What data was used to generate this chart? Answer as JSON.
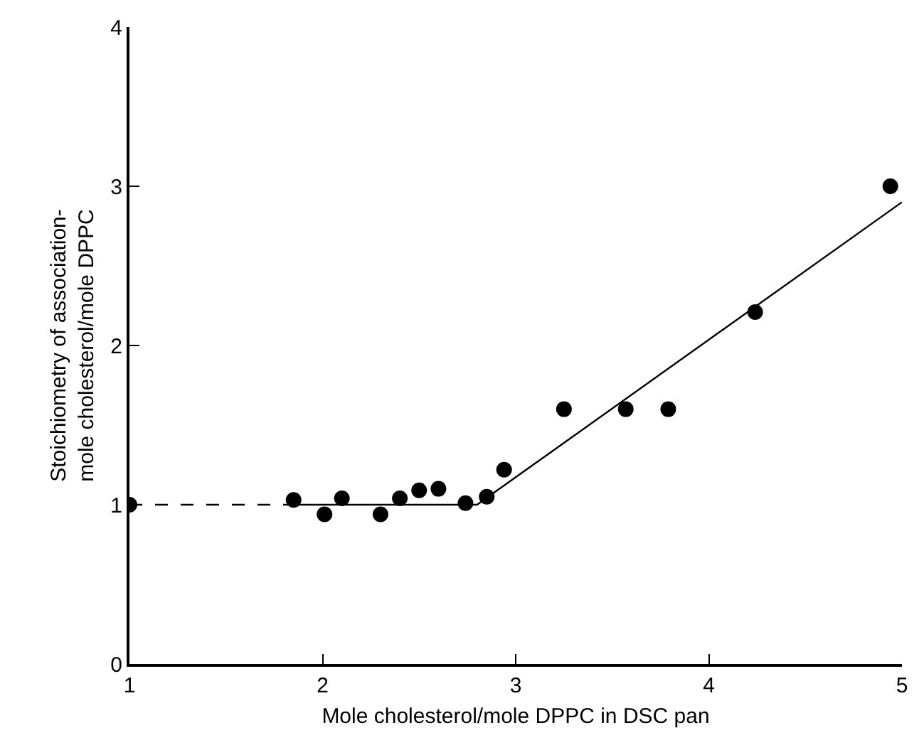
{
  "chart_data": {
    "type": "scatter",
    "xlabel": "Mole cholesterol/mole DPPC in DSC pan",
    "ylabel": "Stoichiometry of association-\nmole cholesterol/mole DPPC",
    "series": [
      {
        "color": "#000000",
        "marker": "circle",
        "x": [
          1.0,
          1.85,
          2.01,
          2.1,
          2.3,
          2.4,
          2.5,
          2.6,
          2.74,
          2.85,
          2.94,
          3.25,
          3.57,
          3.79,
          4.24,
          4.94
        ],
        "values": [
          1.0,
          1.03,
          0.94,
          1.04,
          0.94,
          1.04,
          1.09,
          1.1,
          1.01,
          1.05,
          1.22,
          1.6,
          1.6,
          1.6,
          2.21,
          3.0
        ]
      },
      {
        "type": "line",
        "color": "#000000",
        "line_style": "dashed",
        "x": [
          1.0,
          1.85
        ],
        "values": [
          1.0,
          1.0
        ]
      },
      {
        "type": "line",
        "color": "#000000",
        "line_style": "solid",
        "x": [
          1.85,
          2.8,
          5.0
        ],
        "values": [
          1.0,
          1.0,
          2.9
        ]
      }
    ],
    "xlim": [
      1,
      5
    ],
    "xticks": [
      1,
      2,
      3,
      4,
      5
    ],
    "ylim": [
      0,
      4
    ],
    "yticks": [
      0,
      1,
      2,
      3,
      4
    ],
    "grid": false
  }
}
